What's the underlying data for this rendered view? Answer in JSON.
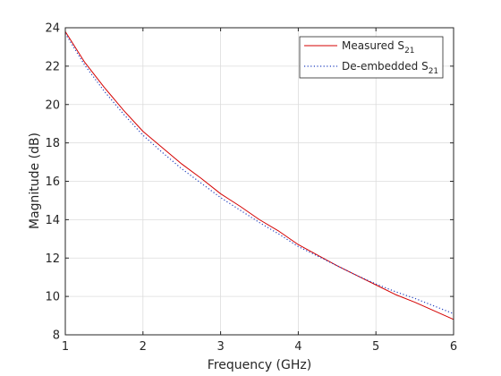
{
  "chart_data": {
    "type": "line",
    "title": "",
    "xlabel": "Frequency (GHz)",
    "ylabel": "Magnitude (dB)",
    "xlim": [
      1,
      6
    ],
    "ylim": [
      8,
      24
    ],
    "xticks": [
      1,
      2,
      3,
      4,
      5,
      6
    ],
    "yticks": [
      8,
      10,
      12,
      14,
      16,
      18,
      20,
      22,
      24
    ],
    "grid": true,
    "legend_placement": "top-right",
    "series": [
      {
        "name": "Measured S21",
        "legend_main": "Measured S",
        "legend_sub": "21",
        "color": "#d40000",
        "style": "solid",
        "x": [
          1.0,
          1.25,
          1.5,
          1.75,
          2.0,
          2.25,
          2.5,
          2.75,
          3.0,
          3.25,
          3.5,
          3.75,
          4.0,
          4.25,
          4.5,
          4.75,
          5.0,
          5.25,
          5.5,
          5.75,
          6.0
        ],
        "y": [
          23.8,
          22.2,
          20.9,
          19.7,
          18.6,
          17.75,
          16.9,
          16.15,
          15.35,
          14.7,
          14.0,
          13.4,
          12.7,
          12.15,
          11.6,
          11.1,
          10.6,
          10.1,
          9.7,
          9.25,
          8.8
        ]
      },
      {
        "name": "De-embedded S21",
        "legend_main": "De-embedded S",
        "legend_sub": "21",
        "color": "#1f3fbf",
        "style": "dotted",
        "x": [
          1.0,
          1.25,
          1.5,
          1.75,
          2.0,
          2.25,
          2.5,
          2.75,
          3.0,
          3.25,
          3.5,
          3.75,
          4.0,
          4.25,
          4.5,
          4.75,
          5.0,
          5.25,
          5.5,
          5.75,
          6.0
        ],
        "y": [
          23.7,
          22.05,
          20.7,
          19.5,
          18.4,
          17.5,
          16.65,
          15.9,
          15.15,
          14.5,
          13.85,
          13.25,
          12.6,
          12.1,
          11.6,
          11.1,
          10.65,
          10.25,
          9.9,
          9.5,
          9.1
        ]
      }
    ]
  }
}
